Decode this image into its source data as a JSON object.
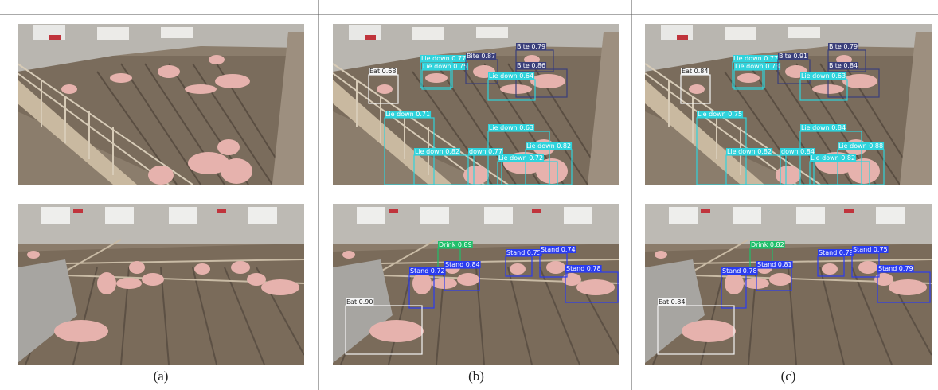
{
  "panels": [
    {
      "caption": "(a)"
    },
    {
      "caption": "(b)",
      "top": [
        "Eat 0.68",
        "Lie down 0.77",
        "Lie down 0.75",
        "Bite 0.87",
        "Bite 0.79",
        "Bite 0.86",
        "Lie down 0.64",
        "Lie down 0.71",
        "Lie down 0.63",
        "Lie down 0.82",
        "Lie down 0.82",
        "down 0.77",
        "Lie down 0.72"
      ],
      "bottom": [
        "Drink 0.89",
        "Stand 0.75",
        "Stand 0.74",
        "Stand 0.84",
        "Stand 0.72",
        "Stand 0.78",
        "Eat 0.90"
      ]
    },
    {
      "caption": "(c)",
      "top": [
        "Eat 0.84",
        "Lie down 0.77",
        "Lie down 0.73",
        "Bite 0.91",
        "Bite 0.79",
        "Bite 0.84",
        "Lie down 0.63",
        "Lie down 0.75",
        "Lie down 0.84",
        "Lie down 0.88",
        "Lie down 0.82",
        "down 0.84",
        "Lie down 0.82"
      ],
      "bottom": [
        "Drink 0.82",
        "Stand 0.79",
        "Stand 0.75",
        "Stand 0.81",
        "Stand 0.78",
        "Stand 0.79",
        "Eat 0.84"
      ]
    }
  ]
}
